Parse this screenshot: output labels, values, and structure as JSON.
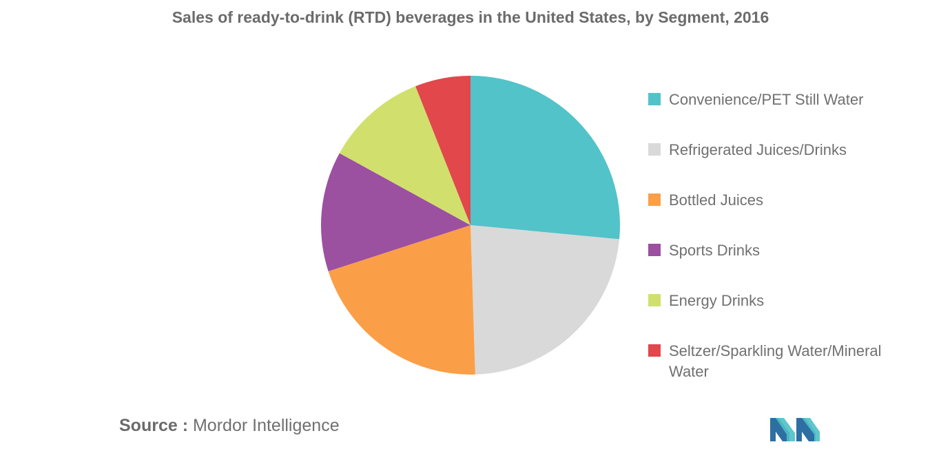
{
  "chart_data": {
    "type": "pie",
    "title": "Sales of ready-to-drink (RTD) beverages in the United States, by Segment, 2016",
    "start_angle_deg": 0,
    "direction": "clockwise",
    "slices": [
      {
        "label": "Convenience/PET Still Water",
        "value": 26.5,
        "color": "#52c3c9"
      },
      {
        "label": "Refrigerated Juices/Drinks",
        "value": 23.0,
        "color": "#d9d9d9"
      },
      {
        "label": "Bottled Juices",
        "value": 20.5,
        "color": "#fa9f47"
      },
      {
        "label": "Sports Drinks",
        "value": 13.0,
        "color": "#9c50a0"
      },
      {
        "label": "Energy Drinks",
        "value": 11.0,
        "color": "#d1e06c"
      },
      {
        "label": "Seltzer/Sparkling Water/Mineral Water",
        "value": 6.0,
        "color": "#e1474b"
      }
    ],
    "legend_position": "right"
  },
  "source": {
    "label": "Source :",
    "text": "Mordor Intelligence"
  },
  "logo": {
    "icon": "mordor-intelligence-logo-icon",
    "colors": [
      "#2e6fa3",
      "#4dc0c7"
    ]
  }
}
